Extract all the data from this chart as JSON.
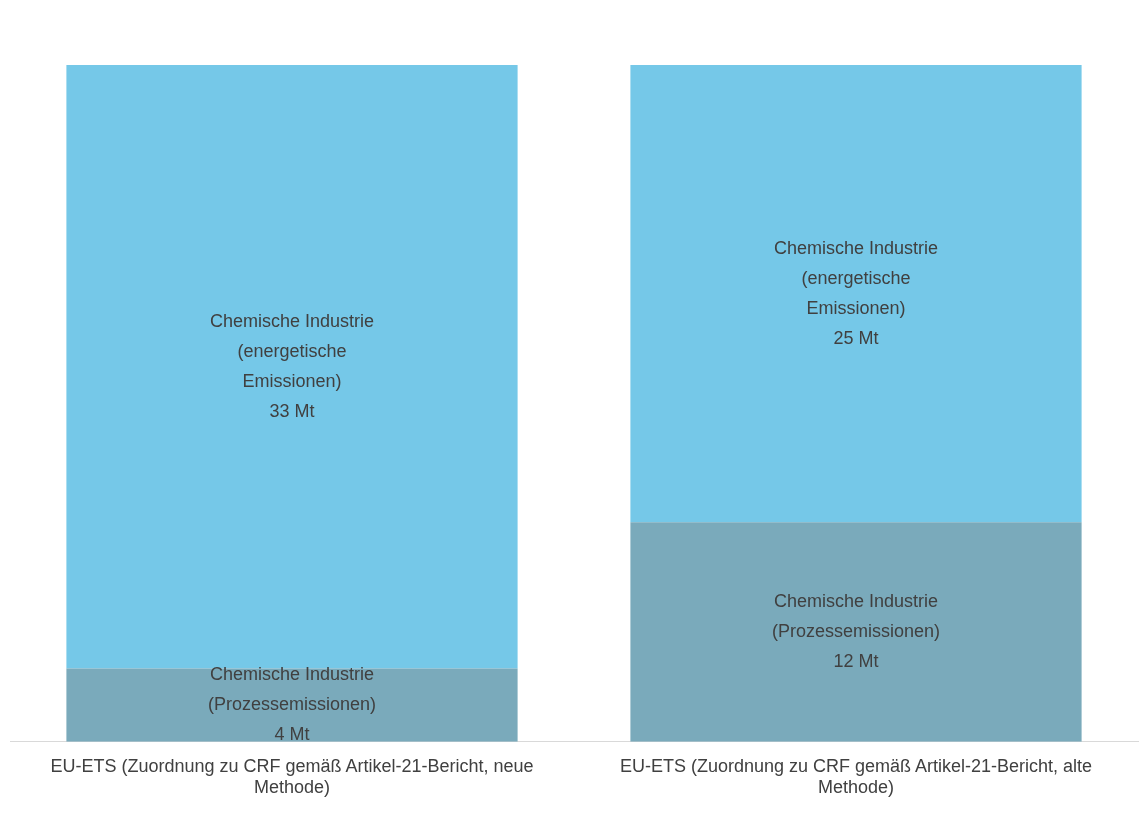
{
  "chart_data": {
    "type": "bar",
    "stacked": true,
    "grid": false,
    "legend": false,
    "categories": [
      "EU-ETS (Zuordnung zu CRF gemäß Artikel-21-Bericht, neue Methode)",
      "EU-ETS (Zuordnung zu CRF gemäß Artikel-21-Bericht, alte Methode)"
    ],
    "series": [
      {
        "name": "Chemische Industrie (Prozessemissionen)",
        "color": "#7aaabb",
        "values": [
          4,
          12
        ],
        "value_labels": [
          "4 Mt",
          "12 Mt"
        ]
      },
      {
        "name": "Chemische Industrie (energetische Emissionen)",
        "color": "#75c8e8",
        "values": [
          33,
          25
        ],
        "value_labels": [
          "33 Mt",
          "25 Mt"
        ]
      }
    ]
  }
}
